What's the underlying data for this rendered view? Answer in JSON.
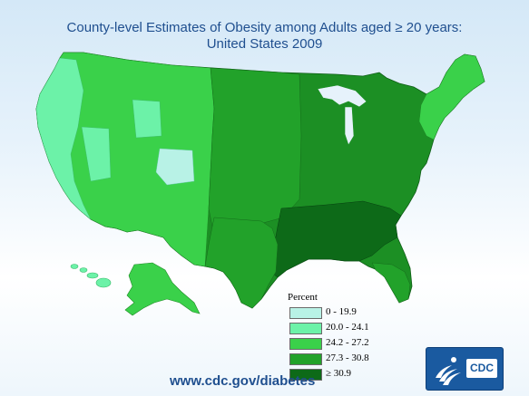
{
  "title": {
    "line1": "County-level Estimates of Obesity among Adults aged ≥ 20 years:",
    "line2": "United States 2009"
  },
  "legend": {
    "title": "Percent",
    "items": [
      {
        "label": "0 - 19.9",
        "color": "#b8f2e6"
      },
      {
        "label": "20.0 - 24.1",
        "color": "#6cf2a8"
      },
      {
        "label": "24.2 - 27.2",
        "color": "#3ad14a"
      },
      {
        "label": "27.3 - 30.8",
        "color": "#22a22a"
      },
      {
        "label": "≥ 30.9",
        "color": "#0d6a18"
      }
    ]
  },
  "footer": {
    "url": "www.cdc.gov/diabetes"
  },
  "logo": {
    "text": "CDC",
    "icon": "hhs-eagle-icon",
    "color": "#1a5aa0"
  }
}
